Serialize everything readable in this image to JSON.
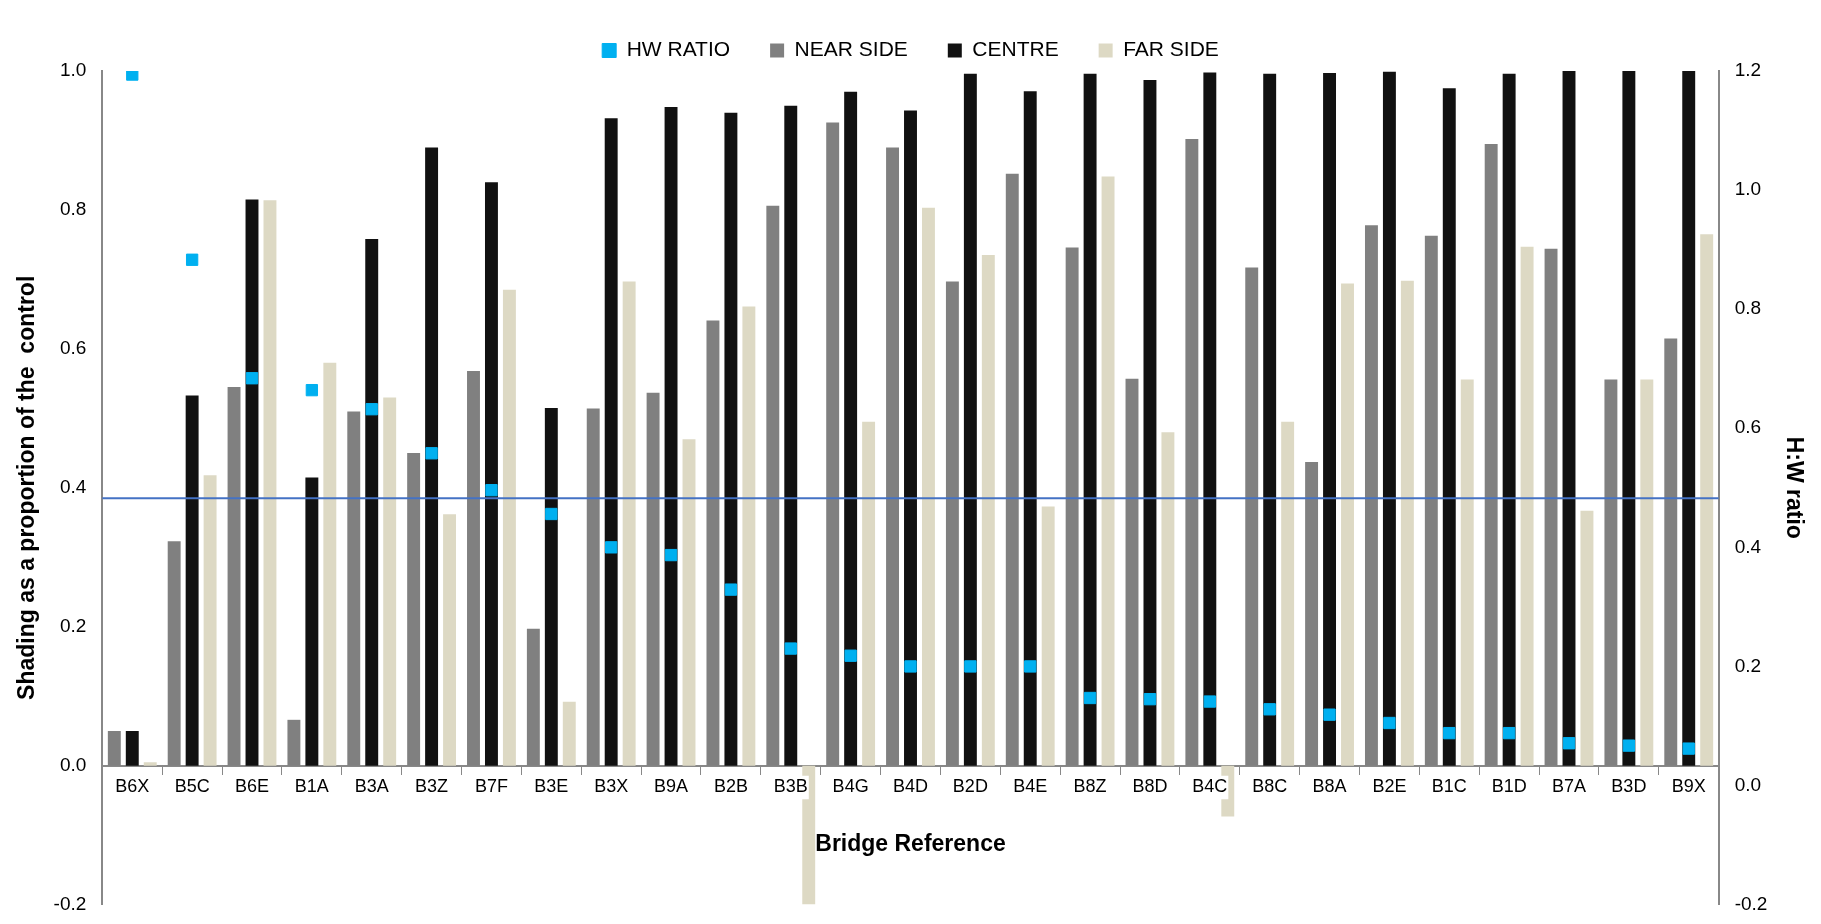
{
  "chart_data": {
    "type": "bar",
    "xlabel": "Bridge Reference",
    "ylabel": "Shading as a proportion of the  control",
    "y2label": "H:W ratio",
    "categories": [
      "B6X",
      "B5C",
      "B6E",
      "B1A",
      "B3A",
      "B3Z",
      "B7F",
      "B3E",
      "B3X",
      "B9A",
      "B2B",
      "B3B",
      "B4G",
      "B4D",
      "B2D",
      "B4E",
      "B8Z",
      "B8D",
      "B4C",
      "B8C",
      "B8A",
      "B2E",
      "B1C",
      "B1D",
      "B7A",
      "B3D",
      "B9X"
    ],
    "series": [
      {
        "name": "NEAR SIDE",
        "color": "#808080",
        "values": [
          0.05,
          0.323,
          0.545,
          0.066,
          0.51,
          0.45,
          0.568,
          0.197,
          0.514,
          0.537,
          0.641,
          0.806,
          0.926,
          0.89,
          0.697,
          0.852,
          0.746,
          0.557,
          0.902,
          0.717,
          0.437,
          0.778,
          0.763,
          0.895,
          0.744,
          0.556,
          0.615
        ]
      },
      {
        "name": "CENTRE",
        "color": "#111111",
        "values": [
          0.05,
          0.533,
          0.815,
          0.415,
          0.758,
          0.89,
          0.84,
          0.515,
          0.932,
          0.948,
          0.94,
          0.95,
          0.97,
          0.943,
          0.996,
          0.971,
          0.996,
          0.987,
          0.998,
          0.996,
          0.997,
          0.999,
          0.975,
          0.996,
          1.0,
          1.0,
          1.0
        ]
      },
      {
        "name": "FAR SIDE",
        "color": "#ddd9c4",
        "values": [
          0.005,
          0.418,
          0.814,
          0.58,
          0.53,
          0.362,
          0.685,
          0.092,
          0.697,
          0.47,
          0.661,
          -0.2,
          0.495,
          0.803,
          0.735,
          0.373,
          0.848,
          0.48,
          -0.073,
          0.495,
          0.694,
          0.698,
          0.556,
          0.747,
          0.367,
          0.556,
          0.765
        ]
      },
      {
        "name": "HW RATIO",
        "type": "scatter",
        "axis": "y2",
        "marker": "square",
        "color": "#00b0f0",
        "x": [
          "B6X",
          "B5C",
          "B6E",
          "B1A",
          "B3A",
          "B3Z",
          "B7F",
          "B3E",
          "B3X",
          "B9A",
          "B2B",
          "B3B",
          "B4G",
          "B4D",
          "B2D",
          "B4E",
          "B8Z",
          "B8D",
          "B4C",
          "B8C",
          "B8A",
          "B2E",
          "B1C",
          "B1D",
          "B7A",
          "B3D",
          "B9X"
        ],
        "values": [
          1.194,
          0.883,
          0.684,
          0.664,
          0.632,
          0.558,
          0.496,
          0.456,
          0.4,
          0.387,
          0.329,
          0.23,
          0.218,
          0.2,
          0.2,
          0.2,
          0.147,
          0.145,
          0.141,
          0.128,
          0.119,
          0.105,
          0.088,
          0.088,
          0.071,
          0.067,
          0.062
        ]
      }
    ],
    "ylim": [
      -0.2,
      1.0
    ],
    "yticks": [
      -0.2,
      {
        "value": 0,
        "label": "0.0"
      },
      0.2,
      0.4,
      0.6,
      0.8,
      {
        "value": 1,
        "label": "1.0"
      }
    ],
    "y2lim": [
      -0.2,
      1.2
    ],
    "y2ticks": [
      -0.2,
      {
        "value": 0,
        "label": "0.0"
      },
      0.2,
      0.4,
      0.6,
      0.8,
      {
        "value": 1,
        "label": "1.0"
      },
      1.2
    ],
    "ref_lines": [
      {
        "axis": "y",
        "value": 0.385,
        "color": "#4472c4"
      }
    ],
    "grid": false,
    "legend": "top"
  }
}
